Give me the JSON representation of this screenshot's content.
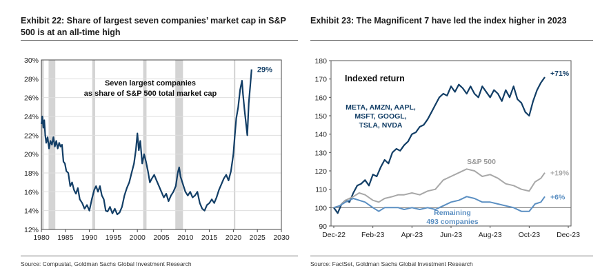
{
  "exhibits": [
    {
      "title": "Exhibit 22: Share of largest seven companies’ market cap in S&P 500 is at an all-time high",
      "source": "Source: Compustat, Goldman Sachs Global Investment Research"
    },
    {
      "title": "Exhibit 23: The Magnificent 7 have led the index higher in 2023",
      "source": "Source: FactSet, Goldman Sachs Global Investment Research"
    }
  ],
  "chart_data": [
    {
      "type": "line",
      "title": "Exhibit 22: Share of largest seven companies’ market cap in S&P 500 is at an all-time high",
      "xlim": [
        1980,
        2030
      ],
      "ylim": [
        12,
        30
      ],
      "x_ticks": [
        "1980",
        "1985",
        "1990",
        "1995",
        "2000",
        "2005",
        "2010",
        "2015",
        "2020",
        "2025",
        "2030"
      ],
      "y_ticks": [
        "12%",
        "14%",
        "16%",
        "18%",
        "20%",
        "22%",
        "24%",
        "26%",
        "28%",
        "30%"
      ],
      "grid": true,
      "annotation": "Seven largest companies\nas share of S&P 500 total market cap",
      "end_label": "29%",
      "shaded_periods": [
        [
          1980.0,
          1980.5
        ],
        [
          1981.5,
          1982.9
        ],
        [
          1990.6,
          1991.2
        ],
        [
          2001.2,
          2001.9
        ],
        [
          2007.9,
          2009.5
        ],
        [
          2020.1,
          2020.4
        ]
      ],
      "colors": {
        "series": "#123e66",
        "recession": "#d4d4d4"
      },
      "series": [
        {
          "values": [
            [
              1980.0,
              23.2
            ],
            [
              1980.2,
              24.0
            ],
            [
              1980.4,
              22.8
            ],
            [
              1980.6,
              23.6
            ],
            [
              1980.8,
              22.0
            ],
            [
              1981.0,
              21.2
            ],
            [
              1981.3,
              21.8
            ],
            [
              1981.6,
              20.6
            ],
            [
              1981.9,
              21.4
            ],
            [
              1982.2,
              21.0
            ],
            [
              1982.5,
              21.8
            ],
            [
              1982.8,
              20.8
            ],
            [
              1983.1,
              21.4
            ],
            [
              1983.4,
              20.6
            ],
            [
              1983.7,
              21.2
            ],
            [
              1984.0,
              20.8
            ],
            [
              1984.3,
              21.0
            ],
            [
              1984.6,
              19.2
            ],
            [
              1984.9,
              19.0
            ],
            [
              1985.2,
              18.2
            ],
            [
              1985.6,
              18.0
            ],
            [
              1986.0,
              16.6
            ],
            [
              1986.4,
              17.0
            ],
            [
              1986.8,
              16.2
            ],
            [
              1987.2,
              15.8
            ],
            [
              1987.6,
              16.4
            ],
            [
              1988.0,
              15.2
            ],
            [
              1988.5,
              14.8
            ],
            [
              1989.0,
              14.2
            ],
            [
              1989.5,
              14.6
            ],
            [
              1990.0,
              14.0
            ],
            [
              1990.5,
              15.2
            ],
            [
              1991.0,
              16.2
            ],
            [
              1991.4,
              16.6
            ],
            [
              1991.8,
              16.0
            ],
            [
              1992.2,
              16.6
            ],
            [
              1992.6,
              15.6
            ],
            [
              1993.0,
              15.2
            ],
            [
              1993.4,
              14.0
            ],
            [
              1993.8,
              13.9
            ],
            [
              1994.3,
              14.4
            ],
            [
              1994.8,
              13.7
            ],
            [
              1995.3,
              14.2
            ],
            [
              1995.8,
              13.6
            ],
            [
              1996.3,
              13.8
            ],
            [
              1996.8,
              14.4
            ],
            [
              1997.3,
              15.6
            ],
            [
              1997.8,
              16.4
            ],
            [
              1998.3,
              17.0
            ],
            [
              1998.8,
              18.0
            ],
            [
              1999.3,
              19.0
            ],
            [
              1999.7,
              20.5
            ],
            [
              2000.0,
              22.2
            ],
            [
              2000.3,
              20.4
            ],
            [
              2000.6,
              21.4
            ],
            [
              2001.0,
              19.0
            ],
            [
              2001.4,
              20.0
            ],
            [
              2001.8,
              19.2
            ],
            [
              2002.2,
              18.2
            ],
            [
              2002.6,
              17.0
            ],
            [
              2003.0,
              17.4
            ],
            [
              2003.5,
              17.8
            ],
            [
              2004.0,
              17.2
            ],
            [
              2004.5,
              16.6
            ],
            [
              2005.0,
              16.0
            ],
            [
              2005.5,
              15.4
            ],
            [
              2006.0,
              15.8
            ],
            [
              2006.5,
              15.0
            ],
            [
              2007.0,
              15.6
            ],
            [
              2007.5,
              16.0
            ],
            [
              2008.0,
              16.6
            ],
            [
              2008.4,
              18.0
            ],
            [
              2008.7,
              18.6
            ],
            [
              2009.0,
              17.6
            ],
            [
              2009.5,
              16.8
            ],
            [
              2010.0,
              16.0
            ],
            [
              2010.5,
              15.6
            ],
            [
              2011.0,
              16.0
            ],
            [
              2011.5,
              15.4
            ],
            [
              2012.0,
              15.6
            ],
            [
              2012.5,
              16.0
            ],
            [
              2013.0,
              14.8
            ],
            [
              2013.5,
              14.2
            ],
            [
              2014.0,
              14.0
            ],
            [
              2014.5,
              14.6
            ],
            [
              2015.0,
              14.8
            ],
            [
              2015.5,
              15.2
            ],
            [
              2016.0,
              14.8
            ],
            [
              2016.5,
              15.4
            ],
            [
              2017.0,
              16.2
            ],
            [
              2017.5,
              16.8
            ],
            [
              2018.0,
              17.4
            ],
            [
              2018.5,
              17.8
            ],
            [
              2019.0,
              17.2
            ],
            [
              2019.5,
              18.2
            ],
            [
              2020.0,
              20.0
            ],
            [
              2020.3,
              22.0
            ],
            [
              2020.6,
              23.8
            ],
            [
              2021.0,
              25.0
            ],
            [
              2021.4,
              26.8
            ],
            [
              2021.8,
              27.8
            ],
            [
              2022.0,
              26.4
            ],
            [
              2022.3,
              24.8
            ],
            [
              2022.6,
              23.4
            ],
            [
              2022.9,
              22.0
            ],
            [
              2023.2,
              25.4
            ],
            [
              2023.5,
              27.2
            ],
            [
              2023.8,
              29.0
            ]
          ]
        }
      ]
    },
    {
      "type": "line",
      "title": "Exhibit 23: The Magnificent 7 have led the index higher in 2023",
      "x_categories": [
        "Dec-22",
        "Feb-23",
        "Apr-23",
        "Jun-23",
        "Aug-23",
        "Oct-23",
        "Dec-23"
      ],
      "x_tick_positions_months": [
        0,
        2,
        4,
        6,
        8,
        10,
        12
      ],
      "ylim": [
        90,
        180
      ],
      "y_ticks": [
        "90",
        "100",
        "110",
        "120",
        "130",
        "140",
        "150",
        "160",
        "170",
        "180"
      ],
      "grid": false,
      "annotation": "Indexed return",
      "series": [
        {
          "name": "META, AMZN, AAPL, MSFT, GOOGL, TSLA, NVDA",
          "end_label": "+71%",
          "color": "#123e66",
          "values": [
            [
              0.0,
              100
            ],
            [
              0.2,
              97
            ],
            [
              0.4,
              102
            ],
            [
              0.6,
              104
            ],
            [
              0.8,
              103
            ],
            [
              1.0,
              108
            ],
            [
              1.2,
              112
            ],
            [
              1.4,
              113
            ],
            [
              1.6,
              115
            ],
            [
              1.8,
              112
            ],
            [
              2.0,
              118
            ],
            [
              2.2,
              117
            ],
            [
              2.4,
              122
            ],
            [
              2.6,
              126
            ],
            [
              2.8,
              124
            ],
            [
              3.0,
              130
            ],
            [
              3.2,
              132
            ],
            [
              3.4,
              131
            ],
            [
              3.6,
              134
            ],
            [
              3.8,
              136
            ],
            [
              4.0,
              140
            ],
            [
              4.2,
              141
            ],
            [
              4.4,
              144
            ],
            [
              4.6,
              145
            ],
            [
              4.8,
              148
            ],
            [
              5.0,
              152
            ],
            [
              5.2,
              156
            ],
            [
              5.4,
              160
            ],
            [
              5.6,
              162
            ],
            [
              5.8,
              161
            ],
            [
              6.0,
              166
            ],
            [
              6.2,
              163
            ],
            [
              6.4,
              167
            ],
            [
              6.6,
              165
            ],
            [
              6.8,
              162
            ],
            [
              7.0,
              166
            ],
            [
              7.2,
              162
            ],
            [
              7.4,
              160
            ],
            [
              7.6,
              166
            ],
            [
              7.8,
              163
            ],
            [
              8.0,
              160
            ],
            [
              8.2,
              164
            ],
            [
              8.4,
              162
            ],
            [
              8.6,
              158
            ],
            [
              8.8,
              164
            ],
            [
              9.0,
              160
            ],
            [
              9.2,
              166
            ],
            [
              9.4,
              159
            ],
            [
              9.6,
              157
            ],
            [
              9.8,
              152
            ],
            [
              10.0,
              150
            ],
            [
              10.2,
              158
            ],
            [
              10.4,
              164
            ],
            [
              10.6,
              168
            ],
            [
              10.8,
              171
            ]
          ]
        },
        {
          "name": "S&P 500",
          "end_label": "+19%",
          "color": "#a8a8a8",
          "values": [
            [
              0.0,
              100
            ],
            [
              0.3,
              101
            ],
            [
              0.6,
              104
            ],
            [
              1.0,
              106
            ],
            [
              1.3,
              108
            ],
            [
              1.6,
              107
            ],
            [
              2.0,
              104
            ],
            [
              2.3,
              103
            ],
            [
              2.6,
              105
            ],
            [
              3.0,
              106
            ],
            [
              3.3,
              107
            ],
            [
              3.6,
              107
            ],
            [
              4.0,
              108
            ],
            [
              4.4,
              107
            ],
            [
              4.8,
              109
            ],
            [
              5.2,
              110
            ],
            [
              5.6,
              115
            ],
            [
              6.0,
              117
            ],
            [
              6.4,
              119
            ],
            [
              6.8,
              121
            ],
            [
              7.2,
              120
            ],
            [
              7.6,
              117
            ],
            [
              8.0,
              118
            ],
            [
              8.4,
              116
            ],
            [
              8.8,
              113
            ],
            [
              9.2,
              112
            ],
            [
              9.6,
              110
            ],
            [
              10.0,
              109
            ],
            [
              10.3,
              114
            ],
            [
              10.6,
              116
            ],
            [
              10.8,
              119
            ]
          ]
        },
        {
          "name": "Remaining 493 companies",
          "end_label": "+6%",
          "color": "#5b8fc2",
          "values": [
            [
              0.0,
              100
            ],
            [
              0.3,
              101
            ],
            [
              0.6,
              103
            ],
            [
              1.0,
              105
            ],
            [
              1.3,
              104
            ],
            [
              1.6,
              103
            ],
            [
              2.0,
              100
            ],
            [
              2.3,
              98
            ],
            [
              2.6,
              100
            ],
            [
              3.0,
              100
            ],
            [
              3.3,
              100
            ],
            [
              3.6,
              99
            ],
            [
              4.0,
              100
            ],
            [
              4.4,
              99
            ],
            [
              4.8,
              100
            ],
            [
              5.2,
              99
            ],
            [
              5.6,
              101
            ],
            [
              6.0,
              103
            ],
            [
              6.4,
              104
            ],
            [
              6.8,
              106
            ],
            [
              7.2,
              105
            ],
            [
              7.6,
              103
            ],
            [
              8.0,
              103
            ],
            [
              8.4,
              102
            ],
            [
              8.8,
              101
            ],
            [
              9.2,
              100
            ],
            [
              9.6,
              98
            ],
            [
              10.0,
              98
            ],
            [
              10.3,
              102
            ],
            [
              10.6,
              103
            ],
            [
              10.8,
              106
            ]
          ]
        }
      ],
      "reference_line": 100
    }
  ]
}
